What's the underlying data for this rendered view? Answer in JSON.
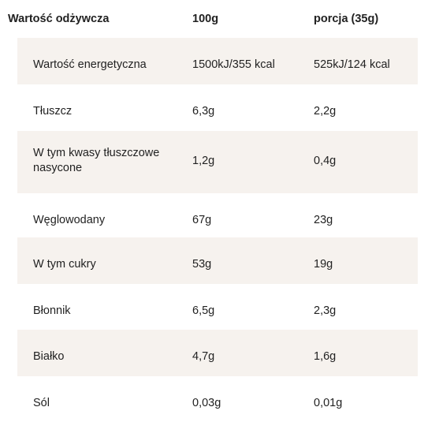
{
  "table": {
    "headers": {
      "nutrient": "Wartość odżywcza",
      "per100": "100g",
      "portion": "porcja (35g)"
    },
    "rows": [
      {
        "name": "Wartość energetyczna",
        "per100": "1500kJ/355 kcal",
        "portion": "525kJ/124 kcal"
      },
      {
        "name": "Tłuszcz",
        "per100": "6,3g",
        "portion": "2,2g"
      },
      {
        "name": "W tym kwasy tłuszczowe nasycone",
        "per100": "1,2g",
        "portion": "0,4g"
      },
      {
        "name": "Węglowodany",
        "per100": "67g",
        "portion": "23g"
      },
      {
        "name": "W tym cukry",
        "per100": "53g",
        "portion": "19g"
      },
      {
        "name": "Błonnik",
        "per100": "6,5g",
        "portion": "2,3g"
      },
      {
        "name": "Białko",
        "per100": "4,7g",
        "portion": "1,6g"
      },
      {
        "name": "Sól",
        "per100": "0,03g",
        "portion": "0,01g"
      }
    ]
  },
  "colors": {
    "row_shade": "#f6f2ee",
    "text": "#222222"
  }
}
